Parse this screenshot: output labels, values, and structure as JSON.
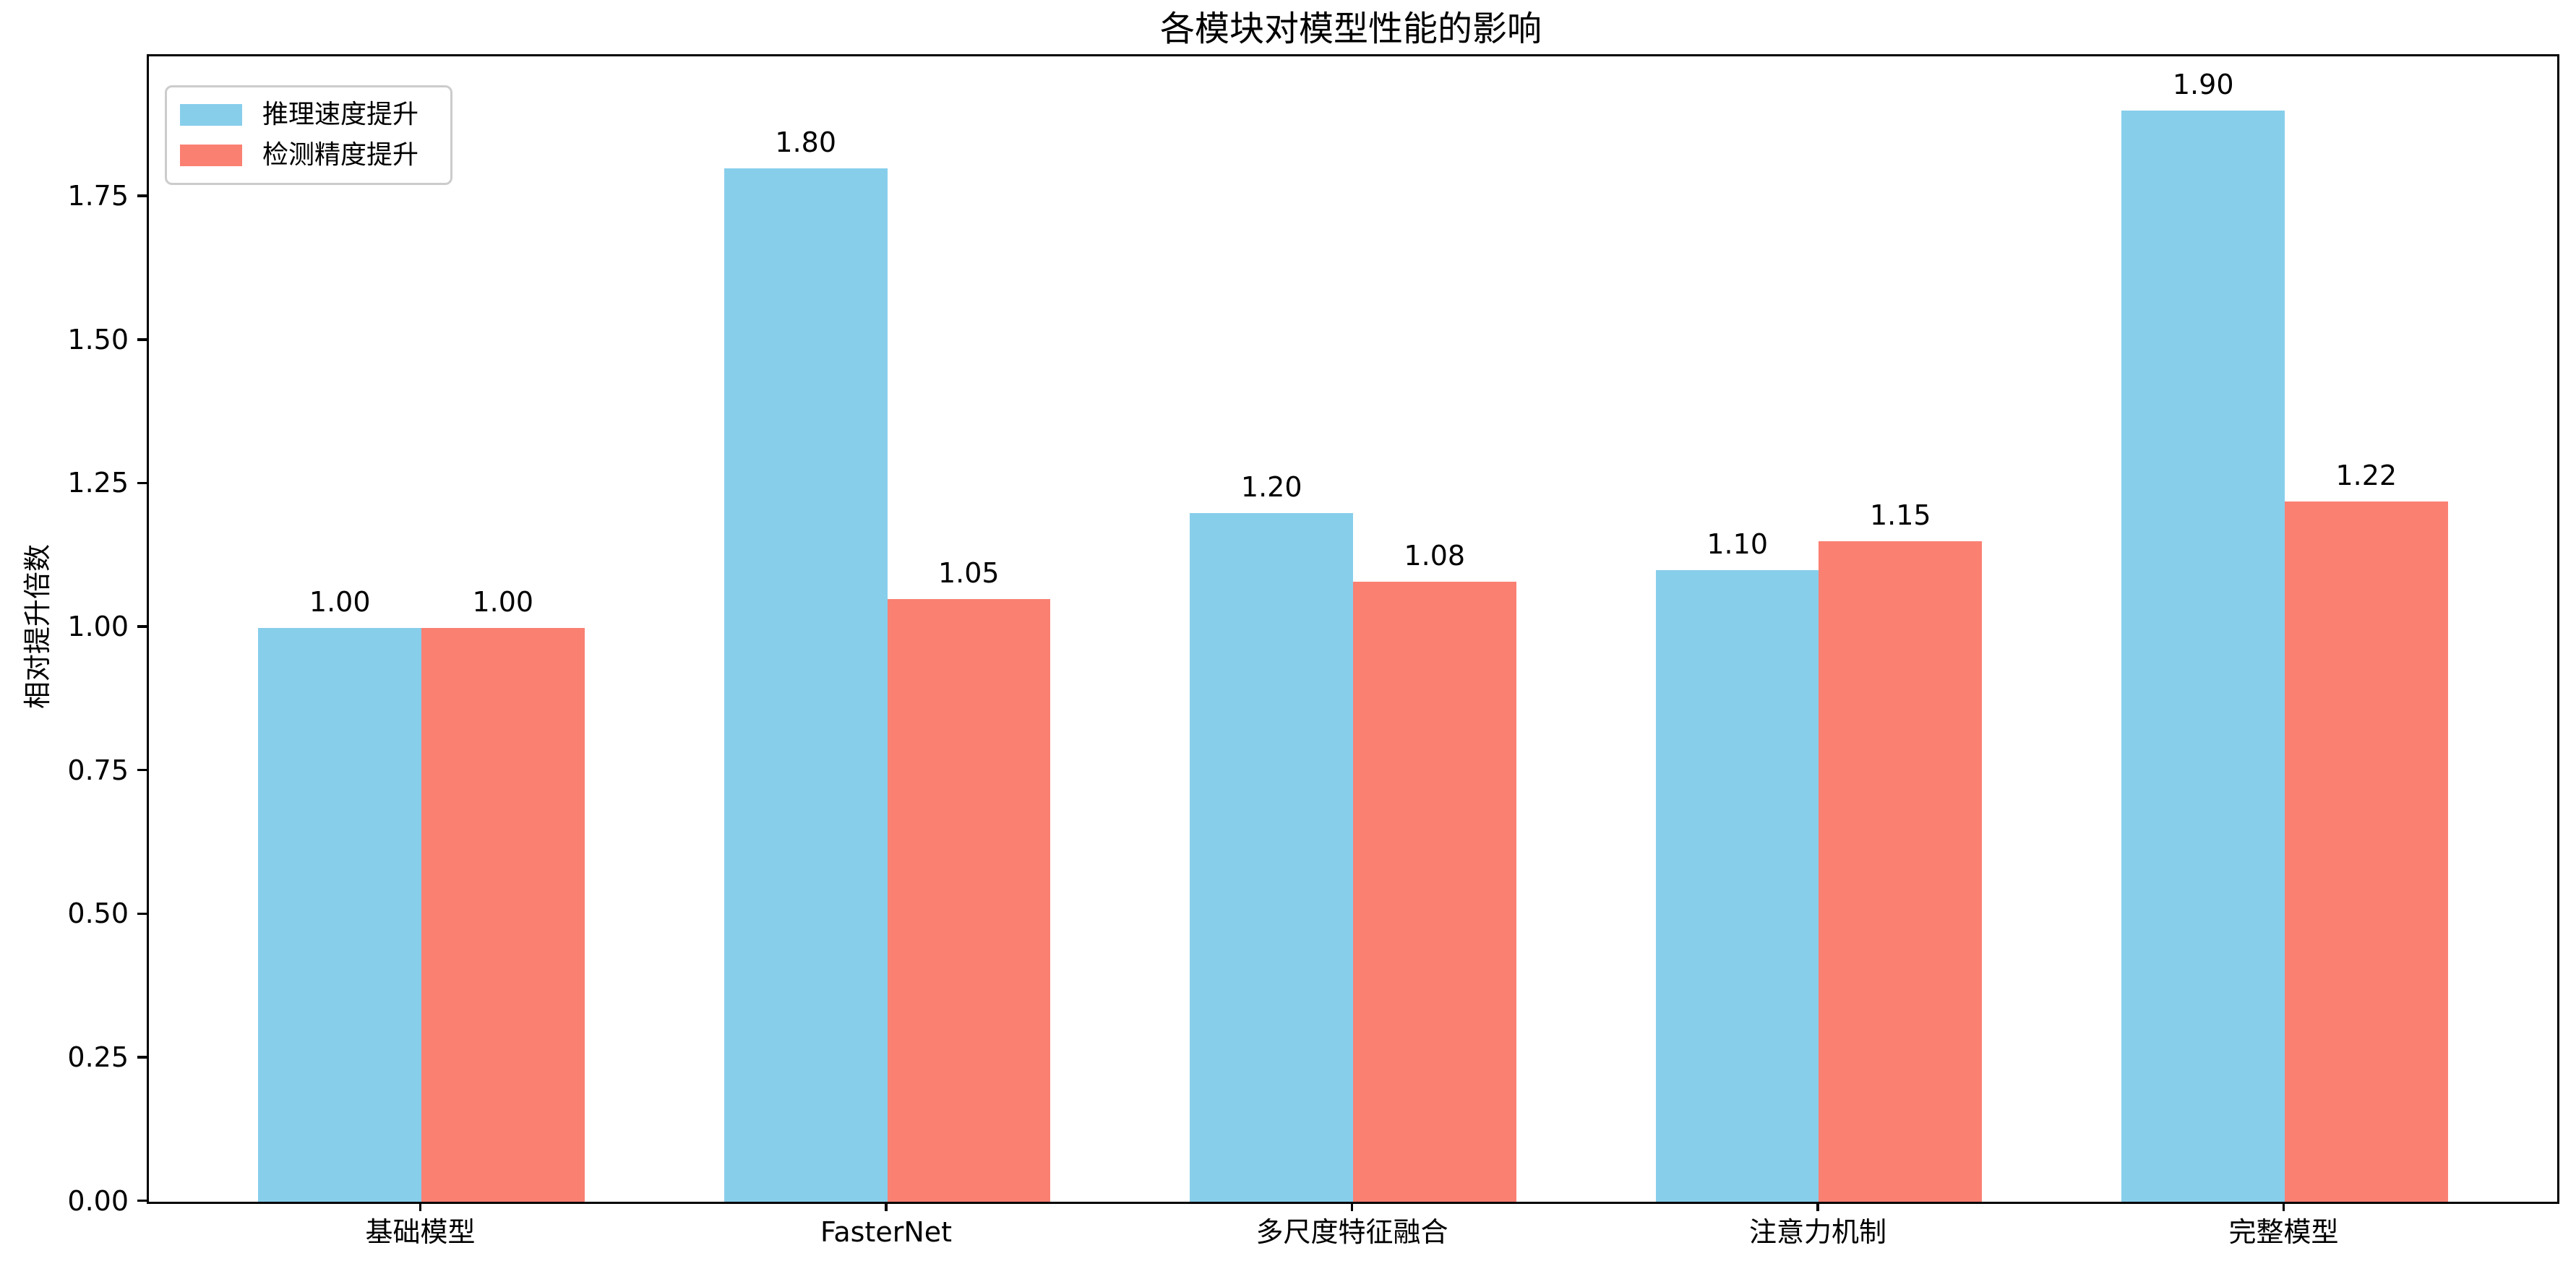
{
  "chart_data": {
    "type": "bar",
    "title": "各模块对模型性能的影响",
    "ylabel": "相对提升倍数",
    "xlabel": "",
    "categories": [
      "基础模型",
      "FasterNet",
      "多尺度特征融合",
      "注意力机制",
      "完整模型"
    ],
    "series": [
      {
        "name": "推理速度提升",
        "color": "#87CEEB",
        "values": [
          1.0,
          1.8,
          1.2,
          1.1,
          1.9
        ],
        "value_labels": [
          "1.00",
          "1.80",
          "1.20",
          "1.10",
          "1.90"
        ]
      },
      {
        "name": "检测精度提升",
        "color": "#FA8072",
        "values": [
          1.0,
          1.05,
          1.08,
          1.15,
          1.22
        ],
        "value_labels": [
          "1.00",
          "1.05",
          "1.08",
          "1.15",
          "1.22"
        ]
      }
    ],
    "yticks": [
      "0.00",
      "0.25",
      "0.50",
      "0.75",
      "1.00",
      "1.25",
      "1.50",
      "1.75"
    ],
    "ytick_values": [
      0.0,
      0.25,
      0.5,
      0.75,
      1.0,
      1.25,
      1.5,
      1.75
    ],
    "ylim": [
      0,
      1.995
    ],
    "xlim": [
      -0.585,
      4.585
    ],
    "bar_width": 0.35,
    "grid": false,
    "legend_position": "upper-left",
    "background_color": "#ffffff",
    "axis_color": "#000000",
    "text_color": "#000000",
    "legend_border_color": "#cccccc"
  }
}
